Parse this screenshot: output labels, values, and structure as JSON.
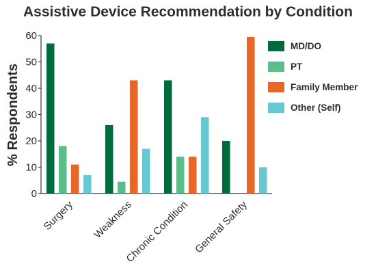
{
  "chart_data": {
    "type": "bar",
    "title": "Assistive Device Recommendation by Condition",
    "xlabel": "",
    "ylabel": "% Respondents",
    "ylim": [
      0,
      60
    ],
    "yticks": [
      0,
      10,
      20,
      30,
      40,
      50,
      60
    ],
    "categories": [
      "Surgery",
      "Weakness",
      "Chronic Condition",
      "General Safety"
    ],
    "series": [
      {
        "name": "MD/DO",
        "color": "#006b3f",
        "values": [
          57,
          26,
          43,
          20
        ]
      },
      {
        "name": "PT",
        "color": "#5bbd8a",
        "values": [
          18,
          4.5,
          14,
          0
        ]
      },
      {
        "name": "Family Member",
        "color": "#e8662a",
        "values": [
          11,
          43,
          14,
          59.5
        ]
      },
      {
        "name": "Other (Self)",
        "color": "#66c9d2",
        "values": [
          7,
          17,
          29,
          10
        ]
      }
    ],
    "legend_position": "right",
    "grid": false
  }
}
